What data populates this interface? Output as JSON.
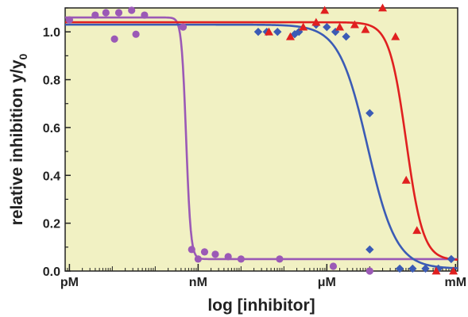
{
  "chart_data": {
    "type": "scatter",
    "xlabel": "log [inhibitor]",
    "ylabel": "relative inhibition y/y",
    "ylabel_sub": "0",
    "x_scale": "log10 molar",
    "xlim": [
      -12.1,
      -2.95
    ],
    "ylim": [
      0.0,
      1.1
    ],
    "x_ticks": [
      {
        "value": -12,
        "label": "pM"
      },
      {
        "value": -9,
        "label": "nM"
      },
      {
        "value": -6,
        "label": "μM"
      },
      {
        "value": -3,
        "label": "mM"
      }
    ],
    "y_ticks": [
      {
        "value": 0.0,
        "label": "0.0"
      },
      {
        "value": 0.2,
        "label": "0.2"
      },
      {
        "value": 0.4,
        "label": "0.4"
      },
      {
        "value": 0.6,
        "label": "0.6"
      },
      {
        "value": 0.8,
        "label": "0.8"
      },
      {
        "value": 1.0,
        "label": "1.0"
      }
    ],
    "plot_background": "#F1F1C3",
    "grid": false,
    "legend": "none",
    "series": [
      {
        "color": "#9B59B6",
        "marker": "circle",
        "points": [
          [
            -12.0,
            1.05
          ],
          [
            -11.4,
            1.07
          ],
          [
            -11.15,
            1.08
          ],
          [
            -10.85,
            1.08
          ],
          [
            -10.55,
            1.09
          ],
          [
            -10.25,
            1.07
          ],
          [
            -10.95,
            0.97
          ],
          [
            -10.45,
            0.99
          ],
          [
            -9.35,
            1.02
          ],
          [
            -9.15,
            0.09
          ],
          [
            -9.0,
            0.05
          ],
          [
            -8.85,
            0.08
          ],
          [
            -8.6,
            0.07
          ],
          [
            -8.3,
            0.06
          ],
          [
            -8.0,
            0.05
          ],
          [
            -7.1,
            0.05
          ],
          [
            -5.85,
            0.02
          ],
          [
            -5.0,
            0.0
          ]
        ],
        "fit": {
          "top": 1.06,
          "bottom": 0.05,
          "midpoint_log": -9.28,
          "hill": 8.0
        }
      },
      {
        "color": "#3B5BB5",
        "marker": "diamond",
        "points": [
          [
            -7.6,
            1.0
          ],
          [
            -7.4,
            1.0
          ],
          [
            -7.15,
            1.0
          ],
          [
            -6.75,
            0.99
          ],
          [
            -6.65,
            1.0
          ],
          [
            -6.25,
            1.03
          ],
          [
            -6.0,
            1.02
          ],
          [
            -5.8,
            1.0
          ],
          [
            -5.55,
            0.98
          ],
          [
            -5.0,
            0.66
          ],
          [
            -5.0,
            0.09
          ],
          [
            -4.3,
            0.01
          ],
          [
            -4.0,
            0.01
          ],
          [
            -3.7,
            0.01
          ],
          [
            -3.4,
            0.01
          ],
          [
            -3.1,
            0.05
          ]
        ],
        "fit": {
          "top": 1.03,
          "bottom": 0.01,
          "midpoint_log": -5.05,
          "hill": 1.3
        }
      },
      {
        "color": "#E02020",
        "marker": "triangle",
        "points": [
          [
            -7.35,
            1.0
          ],
          [
            -6.85,
            0.98
          ],
          [
            -6.55,
            1.02
          ],
          [
            -6.25,
            1.04
          ],
          [
            -6.05,
            1.09
          ],
          [
            -5.7,
            1.02
          ],
          [
            -5.35,
            1.03
          ],
          [
            -5.1,
            1.01
          ],
          [
            -4.7,
            1.1
          ],
          [
            -4.4,
            0.98
          ],
          [
            -4.15,
            0.38
          ],
          [
            -3.9,
            0.17
          ],
          [
            -3.45,
            0.0
          ],
          [
            -3.05,
            0.0
          ]
        ],
        "fit": {
          "top": 1.04,
          "bottom": 0.045,
          "midpoint_log": -4.15,
          "hill": 2.2
        }
      }
    ]
  }
}
